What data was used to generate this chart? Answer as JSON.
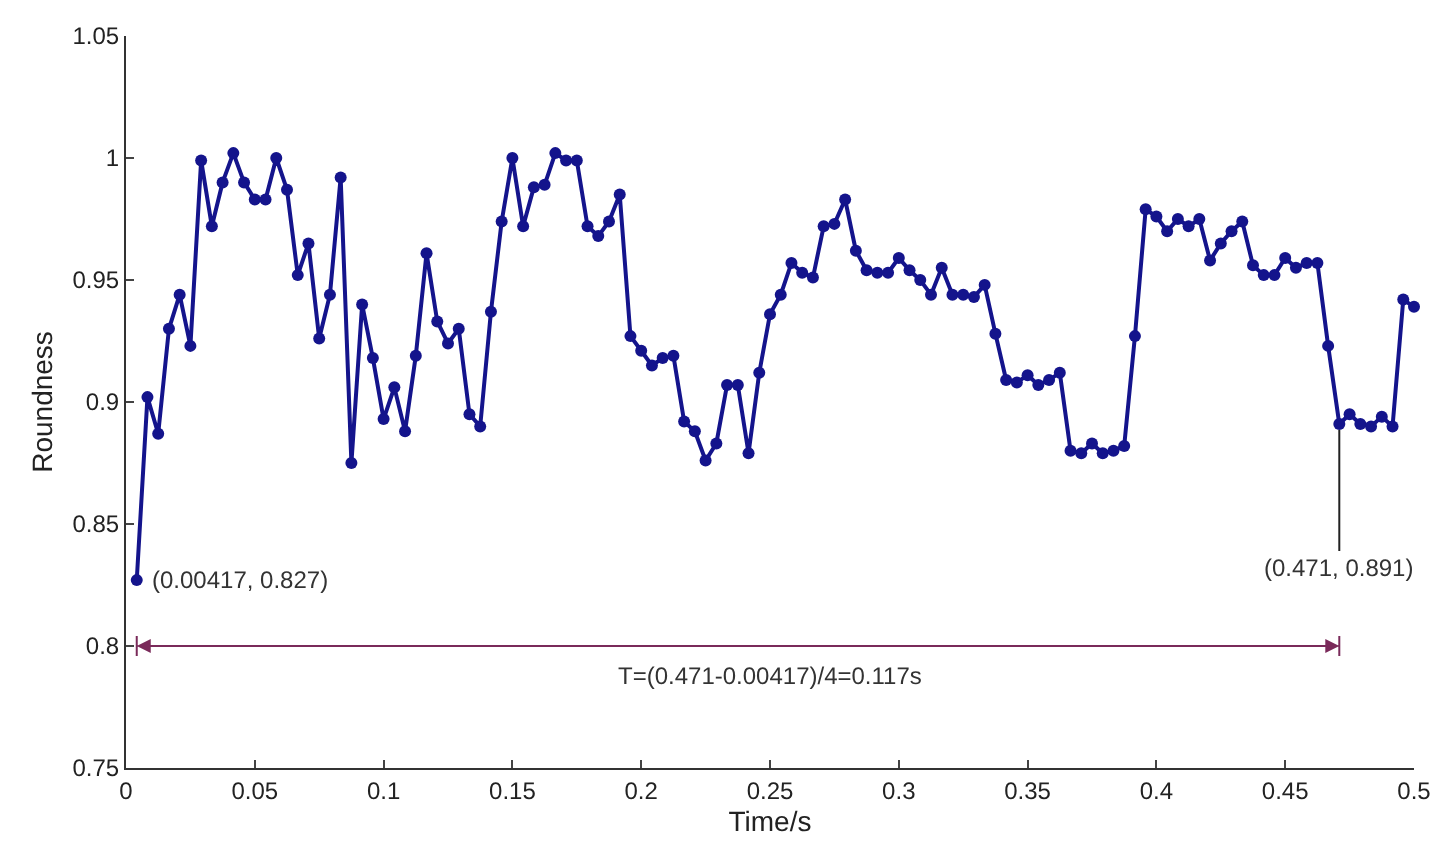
{
  "chart_data": {
    "type": "line",
    "xlabel": "Time/s",
    "ylabel": "Roundness",
    "x": [
      0.00417,
      0.00833,
      0.0125,
      0.01667,
      0.02083,
      0.025,
      0.02917,
      0.03333,
      0.0375,
      0.04167,
      0.04583,
      0.05,
      0.05417,
      0.05833,
      0.0625,
      0.06667,
      0.07083,
      0.075,
      0.07917,
      0.08333,
      0.0875,
      0.09167,
      0.09583,
      0.1,
      0.10417,
      0.10833,
      0.1125,
      0.11667,
      0.12083,
      0.125,
      0.12917,
      0.13333,
      0.1375,
      0.14167,
      0.14583,
      0.15,
      0.15417,
      0.15833,
      0.1625,
      0.16667,
      0.17083,
      0.175,
      0.17917,
      0.18333,
      0.1875,
      0.19167,
      0.19583,
      0.2,
      0.20417,
      0.20833,
      0.2125,
      0.21667,
      0.22083,
      0.225,
      0.22917,
      0.23333,
      0.2375,
      0.24167,
      0.24583,
      0.25,
      0.25417,
      0.25833,
      0.2625,
      0.26667,
      0.27083,
      0.275,
      0.27917,
      0.28333,
      0.2875,
      0.29167,
      0.29583,
      0.3,
      0.30417,
      0.30833,
      0.3125,
      0.31667,
      0.32083,
      0.325,
      0.32917,
      0.33333,
      0.3375,
      0.34167,
      0.34583,
      0.35,
      0.35417,
      0.35833,
      0.3625,
      0.36667,
      0.37083,
      0.375,
      0.37917,
      0.38333,
      0.3875,
      0.39167,
      0.39583,
      0.4,
      0.40417,
      0.40833,
      0.4125,
      0.41667,
      0.42083,
      0.425,
      0.42917,
      0.43333,
      0.4375,
      0.44167,
      0.44583,
      0.45,
      0.45417,
      0.45833,
      0.4625,
      0.46667,
      0.471,
      0.475,
      0.47917,
      0.48333,
      0.4875,
      0.49167,
      0.49583,
      0.5
    ],
    "series": [
      {
        "color": "#14148c",
        "values": [
          0.827,
          0.902,
          0.887,
          0.93,
          0.944,
          0.923,
          0.999,
          0.972,
          0.99,
          1.002,
          0.99,
          0.983,
          0.983,
          1.0,
          0.987,
          0.952,
          0.965,
          0.926,
          0.944,
          0.992,
          0.875,
          0.94,
          0.918,
          0.893,
          0.906,
          0.888,
          0.919,
          0.961,
          0.933,
          0.924,
          0.93,
          0.895,
          0.89,
          0.937,
          0.974,
          1.0,
          0.972,
          0.988,
          0.989,
          1.002,
          0.999,
          0.999,
          0.972,
          0.968,
          0.974,
          0.985,
          0.927,
          0.921,
          0.915,
          0.918,
          0.919,
          0.892,
          0.888,
          0.876,
          0.883,
          0.907,
          0.907,
          0.879,
          0.912,
          0.936,
          0.944,
          0.957,
          0.953,
          0.951,
          0.972,
          0.973,
          0.983,
          0.962,
          0.954,
          0.953,
          0.953,
          0.959,
          0.954,
          0.95,
          0.944,
          0.955,
          0.944,
          0.944,
          0.943,
          0.948,
          0.928,
          0.909,
          0.908,
          0.911,
          0.907,
          0.909,
          0.912,
          0.88,
          0.879,
          0.883,
          0.879,
          0.88,
          0.882,
          0.927,
          0.979,
          0.976,
          0.97,
          0.975,
          0.972,
          0.975,
          0.958,
          0.965,
          0.97,
          0.974,
          0.956,
          0.952,
          0.952,
          0.959,
          0.955,
          0.957,
          0.957,
          0.923,
          0.891,
          0.895,
          0.891,
          0.89,
          0.894,
          0.89,
          0.942,
          0.939
        ]
      }
    ],
    "xlim": [
      0,
      0.5
    ],
    "xticks": [
      0,
      0.05,
      0.1,
      0.15,
      0.2,
      0.25,
      0.3,
      0.35,
      0.4,
      0.45,
      0.5
    ],
    "ylim": [
      0.75,
      1.05
    ],
    "yticks": [
      0.75,
      0.8,
      0.85,
      0.9,
      0.95,
      1,
      1.05
    ],
    "grid": false,
    "marker": "circle",
    "line_style": "solid",
    "annotations": [
      {
        "text": "(0.00417, 0.827)",
        "x": 0.00417,
        "y": 0.827
      },
      {
        "text": "(0.471, 0.891)",
        "x": 0.471,
        "y": 0.891
      },
      "T=(0.471-0.00417)/4=0.117s"
    ]
  }
}
